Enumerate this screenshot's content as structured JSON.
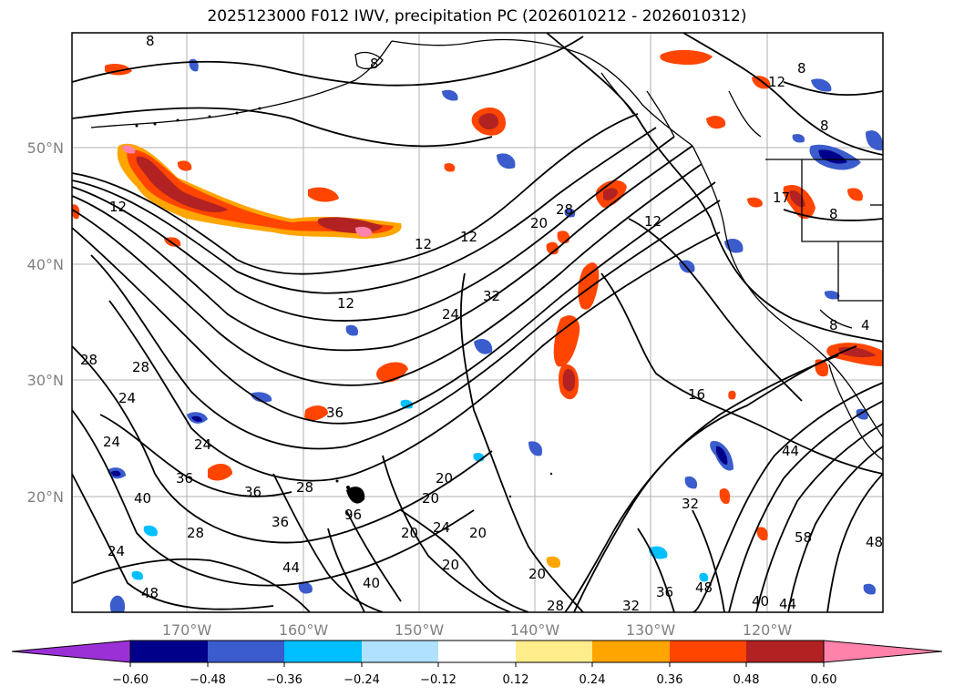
{
  "title": "2025123000 F012 IWV, precipitation PC (2026010212 - 2026010312)",
  "lat_labels": [
    "50°N",
    "40°N",
    "30°N",
    "20°N"
  ],
  "lon_labels": [
    "170°W",
    "160°W",
    "150°W",
    "140°W",
    "130°W",
    "120°W"
  ],
  "colorbar": {
    "colors": [
      "#9b30d6",
      "#00008b",
      "#3a5ccc",
      "#00bfff",
      "#b0e2ff",
      "#ffffff",
      "#ffec8b",
      "#ffa500",
      "#ff4500",
      "#b22222",
      "#ff82ab"
    ],
    "tick_labels": [
      "−0.60",
      "−0.48",
      "−0.36",
      "−0.24",
      "−0.12",
      "0.12",
      "0.24",
      "0.36",
      "0.48",
      "0.60"
    ]
  },
  "contour_labels": [
    "8",
    "8",
    "12",
    "8",
    "8",
    "12",
    "12",
    "12",
    "28",
    "20",
    "12",
    "17",
    "8",
    "32",
    "24",
    "12",
    "8",
    "4",
    "28",
    "28",
    "24",
    "36",
    "16",
    "24",
    "24",
    "36",
    "36",
    "28",
    "20",
    "20",
    "40",
    "36",
    "96",
    "24",
    "44",
    "32",
    "28",
    "20",
    "20",
    "20",
    "24",
    "44",
    "40",
    "20",
    "28",
    "32",
    "36",
    "48",
    "48",
    "40",
    "44",
    "48",
    "58"
  ]
}
